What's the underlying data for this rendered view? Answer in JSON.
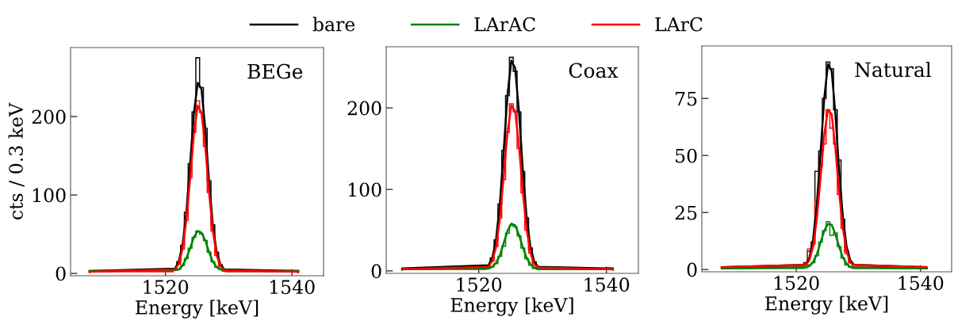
{
  "chart_data": [
    {
      "type": "line",
      "annotations": [
        "BEGe"
      ],
      "xlabel": "Energy [keV]",
      "ylabel": "cts / 0.3 keV",
      "xlim": [
        1505,
        1545
      ],
      "xticks": [
        1520,
        1540
      ],
      "ylim": [
        -3,
        288
      ],
      "yticks": [
        0,
        100,
        200
      ],
      "legend": "top",
      "grid": false,
      "series": [
        {
          "type": "histogram",
          "color": "#101010",
          "bins": [
            1508,
            1521.2,
            1521.8,
            1522.4,
            1523.0,
            1523.6,
            1524.2,
            1524.8,
            1525.4,
            1526.0,
            1526.6,
            1527.2,
            1527.8,
            1528.4,
            1529.0,
            1529.6,
            1541
          ],
          "values": [
            3,
            6,
            15,
            36,
            78,
            140,
            206,
            275,
            237,
            185,
            118,
            62,
            27,
            11,
            5,
            3
          ]
        },
        {
          "type": "histogram",
          "color": "#ff1010",
          "bins": [
            1508,
            1521.2,
            1521.8,
            1522.4,
            1523.0,
            1523.6,
            1524.2,
            1524.8,
            1525.4,
            1526.0,
            1526.6,
            1527.2,
            1527.8,
            1528.4,
            1529.0,
            1529.6,
            1541
          ],
          "values": [
            2,
            5,
            12,
            31,
            68,
            122,
            180,
            220,
            205,
            162,
            103,
            54,
            23,
            9,
            4,
            2
          ]
        },
        {
          "type": "histogram",
          "color": "#108a10",
          "bins": [
            1508,
            1521.2,
            1521.8,
            1522.4,
            1523.0,
            1523.6,
            1524.2,
            1524.8,
            1525.4,
            1526.0,
            1526.6,
            1527.2,
            1527.8,
            1528.4,
            1529.0,
            1529.6,
            1541
          ],
          "values": [
            3,
            4,
            5,
            10,
            19,
            32,
            46,
            54,
            50,
            42,
            27,
            15,
            8,
            5,
            3,
            3
          ]
        },
        {
          "name": "bare",
          "color": "#000000",
          "x": [
            1508,
            1521.5,
            1522.1,
            1522.7,
            1523.3,
            1523.9,
            1524.5,
            1525.1,
            1525.7,
            1526.3,
            1526.9,
            1527.5,
            1528.1,
            1528.7,
            1529.3,
            1541
          ],
          "values": [
            3,
            6,
            15,
            36,
            77,
            139,
            204,
            243,
            235,
            184,
            117,
            61,
            27,
            11,
            5,
            3
          ]
        },
        {
          "name": "LArAC",
          "color": "#008000",
          "x": [
            1508,
            1521.5,
            1522.1,
            1522.7,
            1523.3,
            1523.9,
            1524.5,
            1525.1,
            1525.7,
            1526.3,
            1526.9,
            1527.5,
            1528.1,
            1528.7,
            1529.3,
            1541
          ],
          "values": [
            3,
            4,
            5,
            10,
            19,
            32,
            46,
            54,
            52,
            42,
            27,
            15,
            8,
            5,
            3,
            3
          ]
        },
        {
          "name": "LArC",
          "color": "#ff0000",
          "x": [
            1508,
            1521.5,
            1522.1,
            1522.7,
            1523.3,
            1523.9,
            1524.5,
            1525.1,
            1525.7,
            1526.3,
            1526.9,
            1527.5,
            1528.1,
            1528.7,
            1529.3,
            1541
          ],
          "values": [
            2,
            5,
            12,
            31,
            68,
            120,
            178,
            214,
            205,
            162,
            103,
            54,
            23,
            9,
            4,
            2
          ]
        }
      ]
    },
    {
      "type": "line",
      "annotations": [
        "Coax"
      ],
      "xlabel": "Energy [keV]",
      "xlim": [
        1505.5,
        1545
      ],
      "xticks": [
        1520,
        1540
      ],
      "ylim": [
        -3,
        275
      ],
      "yticks": [
        0,
        100,
        200
      ],
      "grid": false,
      "series": [
        {
          "type": "histogram",
          "color": "#101010",
          "bins": [
            1508,
            1521.2,
            1521.8,
            1522.4,
            1523.0,
            1523.6,
            1524.2,
            1524.8,
            1525.4,
            1526.0,
            1526.6,
            1527.2,
            1527.8,
            1528.4,
            1529.0,
            1529.6,
            1541
          ],
          "values": [
            3,
            7,
            16,
            38,
            82,
            148,
            215,
            262,
            245,
            195,
            122,
            65,
            28,
            11,
            5,
            3
          ]
        },
        {
          "type": "histogram",
          "color": "#ff1010",
          "bins": [
            1508,
            1521.2,
            1521.8,
            1522.4,
            1523.0,
            1523.6,
            1524.2,
            1524.8,
            1525.4,
            1526.0,
            1526.6,
            1527.2,
            1527.8,
            1528.4,
            1529.0,
            1529.6,
            1541
          ],
          "values": [
            2,
            5,
            12,
            30,
            65,
            112,
            170,
            205,
            195,
            150,
            96,
            50,
            22,
            8,
            4,
            2
          ]
        },
        {
          "type": "histogram",
          "color": "#108a10",
          "bins": [
            1508,
            1521.2,
            1521.8,
            1522.4,
            1523.0,
            1523.6,
            1524.2,
            1524.8,
            1525.4,
            1526.0,
            1526.6,
            1527.2,
            1527.8,
            1528.4,
            1529.0,
            1529.6,
            1541
          ],
          "values": [
            2,
            3,
            5,
            9,
            18,
            30,
            46,
            56,
            54,
            43,
            28,
            15,
            7,
            3,
            2,
            2
          ]
        },
        {
          "type": "line",
          "color": "#000000",
          "x": [
            1508,
            1521.5,
            1522.1,
            1522.7,
            1523.3,
            1523.9,
            1524.5,
            1525.1,
            1525.7,
            1526.3,
            1526.9,
            1527.5,
            1528.1,
            1528.7,
            1529.3,
            1541
          ],
          "values": [
            3,
            7,
            15,
            38,
            82,
            147,
            216,
            258,
            249,
            195,
            124,
            65,
            29,
            11,
            5,
            3
          ]
        },
        {
          "type": "line",
          "color": "#008000",
          "x": [
            1508,
            1521.5,
            1522.1,
            1522.7,
            1523.3,
            1523.9,
            1524.5,
            1525.1,
            1525.7,
            1526.3,
            1526.9,
            1527.5,
            1528.1,
            1528.7,
            1529.3,
            1541
          ],
          "values": [
            2,
            3,
            5,
            10,
            19,
            34,
            49,
            58,
            56,
            44,
            29,
            16,
            8,
            4,
            2,
            2
          ]
        },
        {
          "type": "line",
          "color": "#ff0000",
          "x": [
            1508,
            1521.5,
            1522.1,
            1522.7,
            1523.3,
            1523.9,
            1524.5,
            1525.1,
            1525.7,
            1526.3,
            1526.9,
            1527.5,
            1528.1,
            1528.7,
            1529.3,
            1541
          ],
          "values": [
            2,
            5,
            12,
            29,
            64,
            116,
            170,
            203,
            196,
            153,
            97,
            51,
            22,
            8,
            4,
            2
          ]
        }
      ]
    },
    {
      "type": "line",
      "annotations": [
        "Natural"
      ],
      "xlabel": "Energy [keV]",
      "xlim": [
        1504.8,
        1545
      ],
      "xticks": [
        1520,
        1540
      ],
      "ylim": [
        -1,
        98
      ],
      "yticks": [
        0,
        25,
        50,
        75
      ],
      "grid": false,
      "series": [
        {
          "type": "histogram",
          "color": "#101010",
          "bins": [
            1508,
            1521.2,
            1521.8,
            1522.4,
            1523.0,
            1523.6,
            1524.2,
            1524.8,
            1525.4,
            1526.0,
            1526.6,
            1527.2,
            1527.8,
            1528.4,
            1529.0,
            1529.6,
            1541
          ],
          "values": [
            1,
            3,
            8,
            12,
            43,
            52,
            75,
            91,
            88,
            70,
            48,
            22,
            8,
            3,
            1,
            1
          ]
        },
        {
          "type": "histogram",
          "color": "#ff1010",
          "bins": [
            1508,
            1521.2,
            1521.8,
            1522.4,
            1523.0,
            1523.6,
            1524.2,
            1524.8,
            1525.4,
            1526.0,
            1526.6,
            1527.2,
            1527.8,
            1528.4,
            1529.0,
            1529.6,
            1541
          ],
          "values": [
            1,
            2,
            9,
            11,
            30,
            45,
            55,
            70,
            62,
            55,
            33,
            18,
            7,
            3,
            1,
            1
          ]
        },
        {
          "type": "histogram",
          "color": "#108a10",
          "bins": [
            1508,
            1521.2,
            1521.8,
            1522.4,
            1523.0,
            1523.6,
            1524.2,
            1524.8,
            1525.4,
            1526.0,
            1526.6,
            1527.2,
            1527.8,
            1528.4,
            1529.0,
            1529.6,
            1541
          ],
          "values": [
            0.5,
            1,
            2,
            3,
            6,
            12,
            17,
            21,
            15,
            16,
            10,
            5,
            2,
            1,
            0.5,
            0.5
          ]
        },
        {
          "type": "line",
          "color": "#000000",
          "x": [
            1508,
            1521.5,
            1522.1,
            1522.7,
            1523.3,
            1523.9,
            1524.5,
            1525.1,
            1525.7,
            1526.3,
            1526.9,
            1527.5,
            1528.1,
            1528.7,
            1529.3,
            1541
          ],
          "values": [
            1,
            2,
            5,
            13,
            28,
            51,
            75,
            90,
            87,
            68,
            43,
            23,
            10,
            4,
            2,
            1
          ]
        },
        {
          "type": "line",
          "color": "#008000",
          "x": [
            1508,
            1521.5,
            1522.1,
            1522.7,
            1523.3,
            1523.9,
            1524.5,
            1525.1,
            1525.7,
            1526.3,
            1526.9,
            1527.5,
            1528.1,
            1528.7,
            1529.3,
            1541
          ],
          "values": [
            0.5,
            0.8,
            1.5,
            3.2,
            6.6,
            11.7,
            17,
            20,
            19.6,
            15.4,
            10,
            5.3,
            2.5,
            1.1,
            0.7,
            0.5
          ]
        },
        {
          "type": "line",
          "color": "#ff0000",
          "x": [
            1508,
            1521.5,
            1522.1,
            1522.7,
            1523.3,
            1523.9,
            1524.5,
            1525.1,
            1525.7,
            1526.3,
            1526.9,
            1527.5,
            1528.1,
            1528.7,
            1529.3,
            1541
          ],
          "values": [
            1,
            2,
            4,
            10,
            22,
            40,
            59,
            70,
            68,
            53,
            34,
            18,
            8,
            3,
            2,
            1
          ]
        }
      ]
    }
  ]
}
